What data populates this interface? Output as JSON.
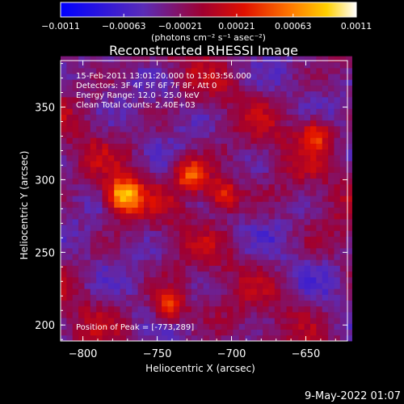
{
  "chart_data": {
    "type": "heatmap",
    "title": "Reconstructed RHESSI Image",
    "xlabel": "Heliocentric X (arcsec)",
    "ylabel": "Heliocentric Y (arcsec)",
    "xlim": [
      -815,
      -622
    ],
    "ylim": [
      189,
      382
    ],
    "x_ticks": [
      -800,
      -750,
      -700,
      -650
    ],
    "y_ticks": [
      200,
      250,
      300,
      350
    ],
    "x_tick_labels": [
      "−800",
      "−750",
      "−700",
      "−650"
    ],
    "y_tick_labels": [
      "200",
      "250",
      "300",
      "350"
    ],
    "colorbar": {
      "min": -0.0011,
      "max": 0.0011,
      "tick_values": [
        -0.0011,
        -0.00063,
        -0.00021,
        0.00021,
        0.00063,
        0.0011
      ],
      "tick_labels": [
        "−0.0011",
        "−0.00063",
        "−0.00021",
        "0.00021",
        "0.00063",
        "0.0011"
      ],
      "units_label": "(photons cm⁻² s⁻¹ asec⁻²)",
      "colors": [
        "#0000ff",
        "#7c30a8",
        "#d00000",
        "#ff6a00",
        "#ffff00",
        "#ffffff"
      ]
    },
    "sources": [
      {
        "x": -773,
        "y": 289,
        "peak": 0.0011
      },
      {
        "x": -727,
        "y": 303,
        "peak": 0.00085
      },
      {
        "x": -706,
        "y": 290,
        "peak": 0.0008
      },
      {
        "x": -742,
        "y": 213,
        "peak": 0.00075
      },
      {
        "x": -643,
        "y": 332,
        "peak": 0.0007
      }
    ],
    "info_lines": [
      "15-Feb-2011 13:01:20.000 to 13:03:56.000",
      "Detectors: 3F 4F 5F 6F 7F 8F, Att 0",
      "Energy Range: 12.0 - 25.0 keV",
      "Clean     Total counts: 2.40E+03"
    ],
    "peak_text": "Position of Peak = [-773,289]"
  },
  "footer_timestamp": "9-May-2022 01:07"
}
